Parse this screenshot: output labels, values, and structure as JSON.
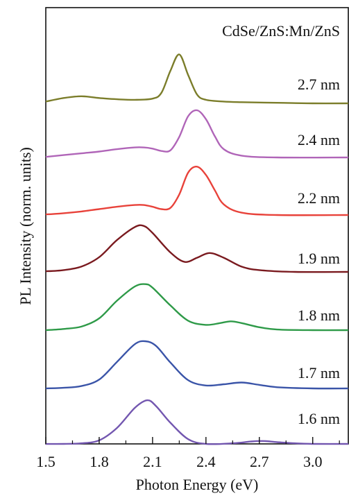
{
  "chart_data": {
    "type": "line",
    "title": "",
    "annotation": "CdSe/ZnS:Mn/ZnS",
    "xlabel": "Photon Energy (eV)",
    "ylabel": "PL Intensity (norm. units)",
    "xlim": [
      1.5,
      3.2
    ],
    "x_ticks": [
      "1.5",
      "1.8",
      "2.1",
      "2.4",
      "2.7",
      "3.0"
    ],
    "y_ticks_labeled": false,
    "layout": "vertically stacked (offset) spectra",
    "series": [
      {
        "name": "2.7 nm",
        "color": "#7b7d2a",
        "points": [
          [
            1.5,
            0.03
          ],
          [
            1.6,
            0.09
          ],
          [
            1.7,
            0.12
          ],
          [
            1.8,
            0.09
          ],
          [
            1.9,
            0.07
          ],
          [
            2.0,
            0.06
          ],
          [
            2.1,
            0.08
          ],
          [
            2.15,
            0.18
          ],
          [
            2.2,
            0.55
          ],
          [
            2.25,
            0.83
          ],
          [
            2.3,
            0.48
          ],
          [
            2.35,
            0.15
          ],
          [
            2.4,
            0.06
          ],
          [
            2.5,
            0.03
          ],
          [
            2.6,
            0.02
          ],
          [
            2.8,
            0.01
          ],
          [
            3.0,
            0.0
          ],
          [
            3.2,
            0.0
          ]
        ]
      },
      {
        "name": "2.4 nm",
        "color": "#b065b8",
        "points": [
          [
            1.5,
            0.01
          ],
          [
            1.6,
            0.04
          ],
          [
            1.7,
            0.07
          ],
          [
            1.8,
            0.1
          ],
          [
            1.9,
            0.14
          ],
          [
            2.0,
            0.17
          ],
          [
            2.05,
            0.17
          ],
          [
            2.1,
            0.15
          ],
          [
            2.15,
            0.11
          ],
          [
            2.2,
            0.12
          ],
          [
            2.25,
            0.35
          ],
          [
            2.3,
            0.7
          ],
          [
            2.35,
            0.8
          ],
          [
            2.4,
            0.65
          ],
          [
            2.45,
            0.36
          ],
          [
            2.5,
            0.14
          ],
          [
            2.6,
            0.03
          ],
          [
            2.8,
            0.0
          ],
          [
            3.2,
            0.0
          ]
        ]
      },
      {
        "name": "2.2 nm",
        "color": "#e8423a",
        "points": [
          [
            1.5,
            0.01
          ],
          [
            1.6,
            0.03
          ],
          [
            1.7,
            0.06
          ],
          [
            1.8,
            0.1
          ],
          [
            1.9,
            0.14
          ],
          [
            2.0,
            0.17
          ],
          [
            2.05,
            0.17
          ],
          [
            2.1,
            0.14
          ],
          [
            2.15,
            0.1
          ],
          [
            2.2,
            0.12
          ],
          [
            2.25,
            0.35
          ],
          [
            2.3,
            0.72
          ],
          [
            2.35,
            0.82
          ],
          [
            2.4,
            0.68
          ],
          [
            2.45,
            0.42
          ],
          [
            2.5,
            0.18
          ],
          [
            2.6,
            0.04
          ],
          [
            2.8,
            0.0
          ],
          [
            3.2,
            0.0
          ]
        ]
      },
      {
        "name": "1.9 nm",
        "color": "#7a1a1f",
        "points": [
          [
            1.5,
            0.01
          ],
          [
            1.6,
            0.03
          ],
          [
            1.7,
            0.09
          ],
          [
            1.8,
            0.25
          ],
          [
            1.9,
            0.54
          ],
          [
            2.0,
            0.76
          ],
          [
            2.05,
            0.78
          ],
          [
            2.1,
            0.66
          ],
          [
            2.2,
            0.33
          ],
          [
            2.28,
            0.17
          ],
          [
            2.35,
            0.24
          ],
          [
            2.42,
            0.32
          ],
          [
            2.5,
            0.24
          ],
          [
            2.6,
            0.09
          ],
          [
            2.7,
            0.03
          ],
          [
            2.9,
            0.0
          ],
          [
            3.2,
            0.0
          ]
        ]
      },
      {
        "name": "1.8 nm",
        "color": "#2e9a48",
        "points": [
          [
            1.5,
            0.0
          ],
          [
            1.6,
            0.02
          ],
          [
            1.7,
            0.06
          ],
          [
            1.8,
            0.2
          ],
          [
            1.9,
            0.5
          ],
          [
            2.0,
            0.74
          ],
          [
            2.06,
            0.78
          ],
          [
            2.1,
            0.72
          ],
          [
            2.2,
            0.42
          ],
          [
            2.3,
            0.16
          ],
          [
            2.4,
            0.09
          ],
          [
            2.48,
            0.12
          ],
          [
            2.54,
            0.15
          ],
          [
            2.6,
            0.12
          ],
          [
            2.7,
            0.05
          ],
          [
            2.8,
            0.01
          ],
          [
            3.0,
            0.0
          ],
          [
            3.2,
            0.0
          ]
        ]
      },
      {
        "name": "1.7 nm",
        "color": "#3a54a8",
        "points": [
          [
            1.5,
            0.0
          ],
          [
            1.6,
            0.01
          ],
          [
            1.7,
            0.04
          ],
          [
            1.8,
            0.15
          ],
          [
            1.9,
            0.45
          ],
          [
            2.0,
            0.75
          ],
          [
            2.06,
            0.8
          ],
          [
            2.12,
            0.72
          ],
          [
            2.2,
            0.44
          ],
          [
            2.3,
            0.14
          ],
          [
            2.4,
            0.05
          ],
          [
            2.5,
            0.07
          ],
          [
            2.6,
            0.1
          ],
          [
            2.7,
            0.06
          ],
          [
            2.8,
            0.02
          ],
          [
            3.0,
            0.0
          ],
          [
            3.2,
            0.0
          ]
        ]
      },
      {
        "name": "1.6 nm",
        "color": "#7357b0",
        "points": [
          [
            1.5,
            0.0
          ],
          [
            1.6,
            0.0
          ],
          [
            1.7,
            0.01
          ],
          [
            1.8,
            0.06
          ],
          [
            1.9,
            0.27
          ],
          [
            2.0,
            0.61
          ],
          [
            2.07,
            0.74
          ],
          [
            2.12,
            0.64
          ],
          [
            2.2,
            0.36
          ],
          [
            2.3,
            0.08
          ],
          [
            2.4,
            0.0
          ],
          [
            2.55,
            0.01
          ],
          [
            2.65,
            0.04
          ],
          [
            2.72,
            0.05
          ],
          [
            2.8,
            0.03
          ],
          [
            2.9,
            0.01
          ],
          [
            3.0,
            0.0
          ],
          [
            3.2,
            0.0
          ]
        ]
      }
    ]
  }
}
